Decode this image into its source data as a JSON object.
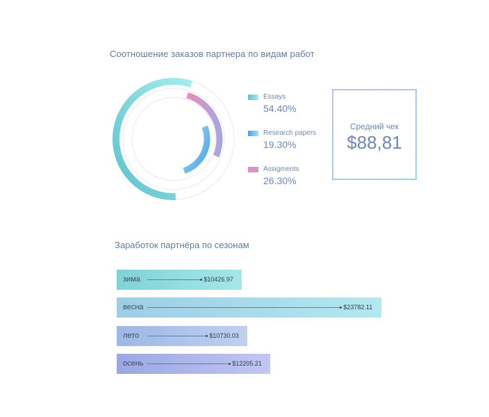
{
  "chart_data": [
    {
      "type": "pie",
      "title": "Соотношение заказов партнера по видам работ",
      "categories": [
        "Essays",
        "Research papers",
        "Assigments"
      ],
      "values": [
        54.4,
        19.3,
        26.3
      ],
      "value_labels": [
        "54.40%",
        "19.30%",
        "26.30%"
      ],
      "colors": {
        "Essays": [
          "#a6ecec",
          "#5cc2cc"
        ],
        "Research papers": [
          "#4aa3e6",
          "#a4ddf4"
        ],
        "Assigments": [
          "#e98cc0",
          "#a9a6dc"
        ]
      },
      "legend": "right"
    },
    {
      "type": "bar",
      "orientation": "horizontal",
      "title": "Заработок партнёра по сезонам",
      "categories": [
        "зима",
        "весна",
        "лето",
        "осень"
      ],
      "values": [
        10426.97,
        23782.11,
        10730.03,
        12205.21
      ],
      "value_labels": [
        "$10426.97",
        "$23782.11",
        "$10730.03",
        "$12205.21"
      ],
      "colors": [
        [
          "#7ed3d6",
          "#a8e6e8"
        ],
        [
          "#9ecde4",
          "#b3e8ef"
        ],
        [
          "#9cb8e4",
          "#c0d0f0"
        ],
        [
          "#9aa8e2",
          "#c2c6f2"
        ]
      ]
    }
  ],
  "average_check": {
    "label": "Средний чек",
    "value": "$88,81"
  }
}
